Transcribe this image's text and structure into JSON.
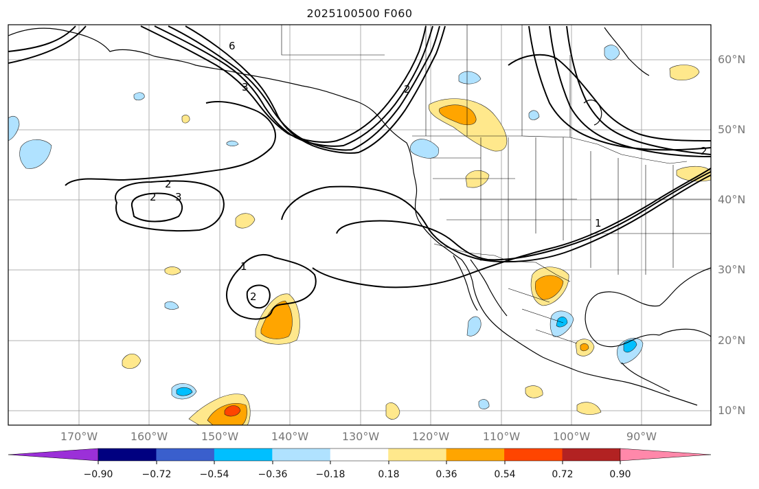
{
  "title": "2025100500 F060",
  "lat_labels": [
    "60°N",
    "50°N",
    "40°N",
    "30°N",
    "20°N",
    "10°N"
  ],
  "lon_labels": [
    "170°W",
    "160°W",
    "150°W",
    "140°W",
    "130°W",
    "120°W",
    "110°W",
    "100°W",
    "90°W"
  ],
  "contour_labels": [
    "6",
    "3",
    "2",
    "2",
    "3",
    "1",
    "2",
    "1",
    "2",
    "2"
  ],
  "colorbar": {
    "tick_labels": [
      "−0.90",
      "−0.72",
      "−0.54",
      "−0.36",
      "−0.18",
      "0.18",
      "0.36",
      "0.54",
      "0.72",
      "0.90"
    ],
    "colors": [
      "#9b30d8",
      "#000080",
      "#3a5fcd",
      "#00bfff",
      "#b0e2ff",
      "#ffffff",
      "#ffe88c",
      "#ffa500",
      "#ff4500",
      "#b22222",
      "#ff88aa"
    ]
  }
}
